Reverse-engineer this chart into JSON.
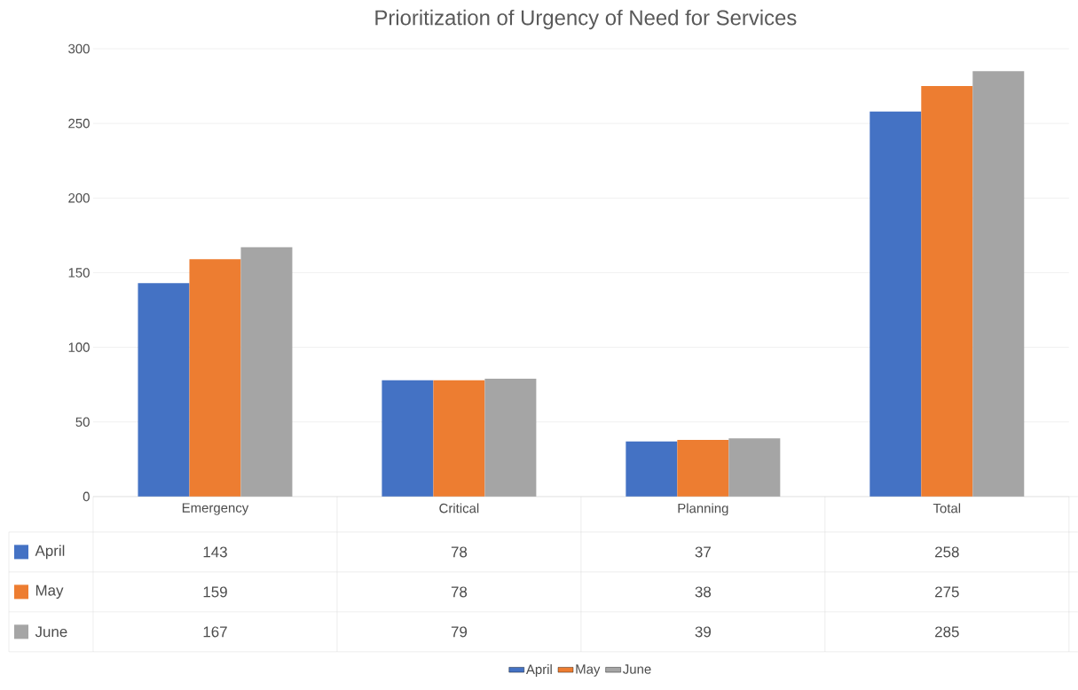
{
  "chart_data": {
    "type": "bar",
    "title": "Prioritization of Urgency of Need for Services",
    "categories": [
      "Emergency",
      "Critical",
      "Planning",
      "Total"
    ],
    "series": [
      {
        "name": "April",
        "color": "#4472c4",
        "values": [
          143,
          78,
          37,
          258
        ]
      },
      {
        "name": "May",
        "color": "#ed7d31",
        "values": [
          159,
          78,
          38,
          275
        ]
      },
      {
        "name": "June",
        "color": "#a5a5a5",
        "values": [
          167,
          79,
          39,
          285
        ]
      }
    ],
    "ylim": [
      0,
      300
    ],
    "yticks": [
      0,
      50,
      100,
      150,
      200,
      250,
      300
    ],
    "grid": "y",
    "legend": "bottom",
    "data_labels": true
  }
}
